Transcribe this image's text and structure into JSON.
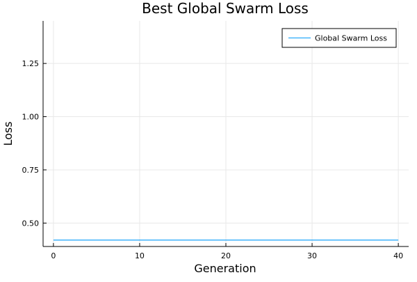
{
  "chart_data": {
    "type": "line",
    "title": "Best Global Swarm Loss",
    "xlabel": "Generation",
    "ylabel": "Loss",
    "xlim": [
      -1.2,
      41.2
    ],
    "ylim": [
      0.39,
      1.45
    ],
    "x_ticks": [
      0,
      10,
      20,
      30,
      40
    ],
    "x_tick_labels": [
      "0",
      "10",
      "20",
      "30",
      "40"
    ],
    "y_ticks": [
      0.5,
      0.75,
      1.0,
      1.25
    ],
    "y_tick_labels": [
      "0.50",
      "0.75",
      "1.00",
      "1.25"
    ],
    "grid": true,
    "legend_position": "top-right",
    "series": [
      {
        "name": "Global Swarm Loss",
        "color": "#009AFA",
        "x": [
          0,
          40
        ],
        "y": [
          0.42,
          0.42
        ]
      }
    ]
  },
  "colors": {
    "series": "#009AFA",
    "grid": "#e8e8e8",
    "axis": "#000000"
  }
}
